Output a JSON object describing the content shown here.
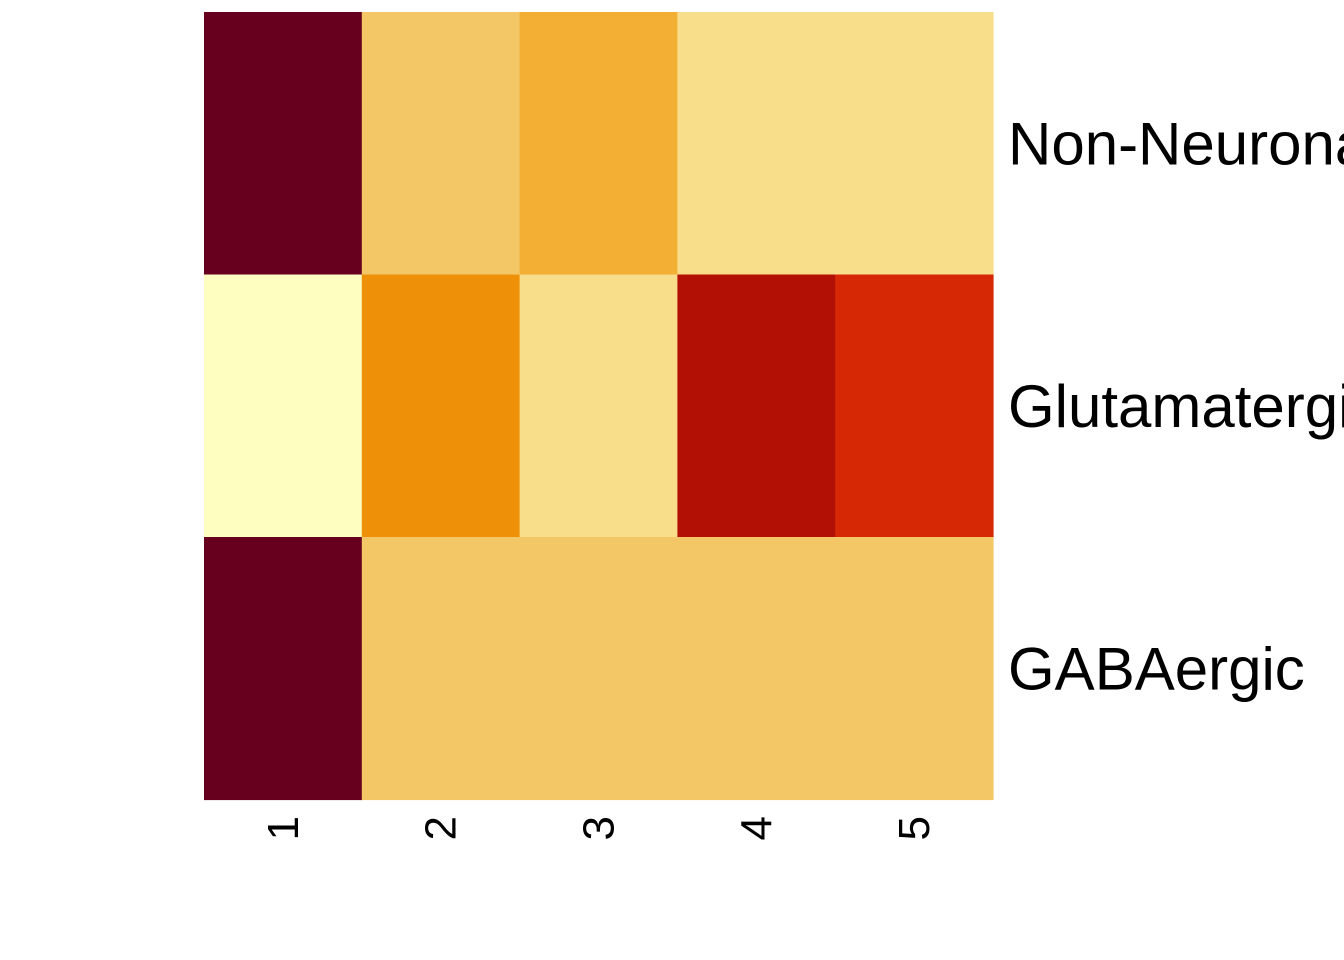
{
  "chart_data": {
    "type": "heatmap",
    "title": "",
    "xlabel": "",
    "ylabel": "",
    "x": [
      "1",
      "2",
      "3",
      "4",
      "5"
    ],
    "y": [
      "Non-Neuronal",
      "Glutamatergic",
      "GABAergic"
    ],
    "values": [
      [
        1.0,
        0.25,
        0.35,
        0.15,
        0.15
      ],
      [
        0.0,
        0.45,
        0.15,
        0.85,
        0.7
      ],
      [
        1.0,
        0.25,
        0.25,
        0.25,
        0.25
      ]
    ],
    "colors": [
      [
        "#67001f",
        "#f4c766",
        "#f2af33",
        "#f8de8b",
        "#f8de8b"
      ],
      [
        "#fdfebf",
        "#ef9009",
        "#f8de8b",
        "#b31005",
        "#d72805"
      ],
      [
        "#67001f",
        "#f4c766",
        "#f4c766",
        "#f4c766",
        "#f4c766"
      ]
    ],
    "colorscale": "YlOrRd",
    "legend": "none",
    "grid": false
  }
}
